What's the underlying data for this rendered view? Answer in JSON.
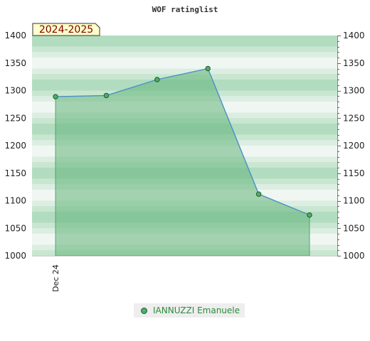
{
  "chart_data": {
    "type": "area",
    "title": "WOF ratinglist",
    "badge": "2024-2025",
    "x": [
      "Dec 24",
      "",
      "",
      "",
      "",
      ""
    ],
    "xtick_labels": [
      "Dec 24"
    ],
    "series": [
      {
        "name": "IANNUZZI Emanuele",
        "values": [
          1289,
          1291,
          1320,
          1340,
          1112,
          1074
        ]
      }
    ],
    "ylim": [
      1000,
      1400
    ],
    "yticks": [
      "1000",
      "1050",
      "1100",
      "1150",
      "1200",
      "1250",
      "1300",
      "1350",
      "1400"
    ],
    "y_axis": "both sides",
    "grid": true,
    "legend": "bottom-center"
  },
  "colors": {
    "area_fill": "#64b47a",
    "line": "#4a90c8",
    "marker_fill": "#4caf6a",
    "marker_stroke": "#1e5a2e",
    "band_colors": [
      "#b2dcc0",
      "#c8e6d0",
      "#dceee2",
      "#f0f7f2"
    ],
    "badge_bg": "#ffffcc",
    "badge_text": "#800000",
    "legend_text": "#2e8b3e"
  }
}
